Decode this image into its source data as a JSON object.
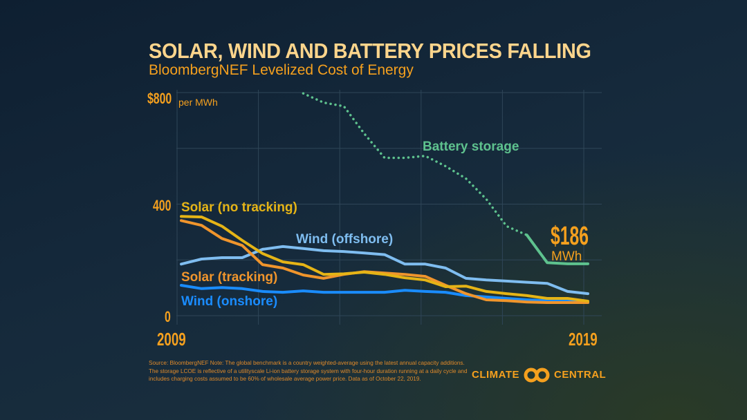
{
  "header": {
    "title": "SOLAR, WIND AND BATTERY PRICES FALLING",
    "subtitle": "BloombergNEF Levelized Cost of Energy"
  },
  "chart_data": {
    "type": "line",
    "title": "SOLAR, WIND AND BATTERY PRICES FALLING",
    "subtitle": "BloombergNEF Levelized Cost of Energy",
    "ylabel": "per MWh",
    "y_tick_labels": [
      "$800",
      "400",
      "0"
    ],
    "x_tick_labels": [
      "2009",
      "2019"
    ],
    "ylim": [
      0,
      800
    ],
    "xlim": [
      2009,
      2019
    ],
    "grid": true,
    "x": [
      2009,
      2009.5,
      2010,
      2010.5,
      2011,
      2011.5,
      2012,
      2012.5,
      2013,
      2013.5,
      2014,
      2014.5,
      2015,
      2015.5,
      2016,
      2016.5,
      2017,
      2017.5,
      2018,
      2018.5,
      2019
    ],
    "series": [
      {
        "name": "Solar (no tracking)",
        "color": "#e5b416",
        "values": [
          356,
          354,
          321,
          270,
          223,
          193,
          183,
          148,
          150,
          156,
          148,
          136,
          128,
          104,
          106,
          87,
          79,
          72,
          62,
          62,
          52
        ]
      },
      {
        "name": "Solar (tracking)",
        "color": "#f0952c",
        "values": [
          341,
          324,
          277,
          252,
          183,
          171,
          146,
          134,
          148,
          158,
          153,
          148,
          141,
          109,
          79,
          57,
          54,
          49,
          47,
          47,
          47
        ]
      },
      {
        "name": "Wind (offshore)",
        "color": "#7fbdf0",
        "values": [
          185,
          203,
          208,
          208,
          238,
          248,
          241,
          233,
          230,
          225,
          219,
          185,
          185,
          171,
          134,
          128,
          124,
          120,
          116,
          87,
          79
        ]
      },
      {
        "name": "Wind (onshore)",
        "color": "#1a8cff",
        "values": [
          109,
          97,
          101,
          97,
          87,
          84,
          89,
          84,
          84,
          84,
          84,
          91,
          87,
          84,
          72,
          67,
          62,
          57,
          54,
          54,
          47
        ]
      },
      {
        "name": "Battery storage",
        "color": "#5ec28e",
        "values": [
          null,
          null,
          null,
          null,
          null,
          null,
          797,
          764,
          751,
          653,
          566,
          566,
          573,
          536,
          492,
          418,
          321,
          289,
          190,
          186,
          186
        ]
      }
    ],
    "annotations": {
      "battery_latest_value": "$186",
      "battery_latest_unit": "MWh"
    }
  },
  "footer": {
    "source": "Source: BloombergNEF Note: The global benchmark is a country weighted-average using the latest annual capacity additions. The storage LCOE is reflective of a utilityscale Li-ion battery storage system with four-hour duration running at a daily cycle and includes charging costs assumed to be 60% of wholesale average power price. Data as of October 22, 2019.",
    "logo_left": "CLIMATE",
    "logo_right": "CENTRAL"
  },
  "colors": {
    "accent": "#f5a01e",
    "title": "#fdd58c"
  }
}
